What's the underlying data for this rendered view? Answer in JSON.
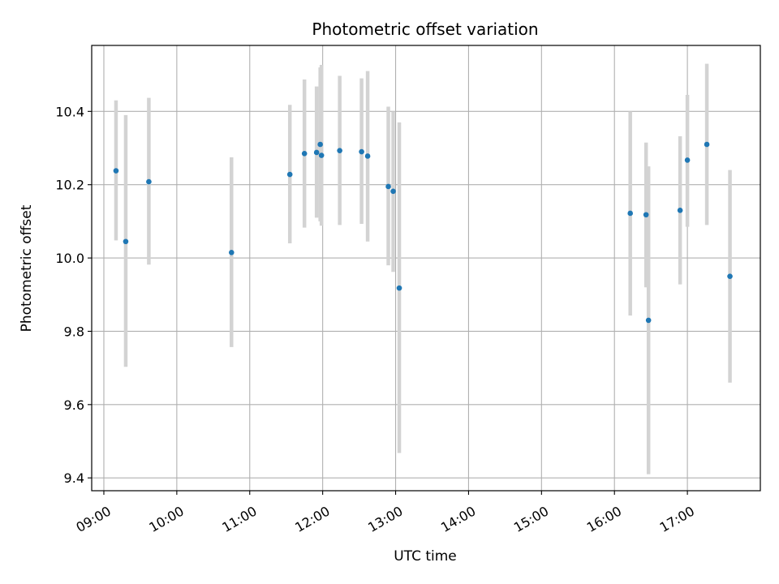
{
  "chart_data": {
    "type": "scatter",
    "title": "Photometric offset variation",
    "xlabel": "UTC time",
    "ylabel": "Photometric offset",
    "xlim": [
      "08:50",
      "18:00"
    ],
    "ylim": [
      9.365,
      10.58
    ],
    "x_ticks": [
      "09:00",
      "10:00",
      "11:00",
      "12:00",
      "13:00",
      "14:00",
      "15:00",
      "16:00",
      "17:00"
    ],
    "y_ticks": [
      9.4,
      9.6,
      9.8,
      10.0,
      10.2,
      10.4
    ],
    "grid": true,
    "colors": {
      "point": "#1f77b4",
      "errorbar": "#d3d3d3",
      "grid": "#b0b0b0",
      "axes": "#000000"
    },
    "points": [
      {
        "x": "09:10",
        "y": 10.238,
        "ylow": 10.048,
        "yhigh": 10.43
      },
      {
        "x": "09:18",
        "y": 10.045,
        "ylow": 9.703,
        "yhigh": 10.39
      },
      {
        "x": "09:37",
        "y": 10.208,
        "ylow": 9.982,
        "yhigh": 10.437
      },
      {
        "x": "10:45",
        "y": 10.015,
        "ylow": 9.757,
        "yhigh": 10.275
      },
      {
        "x": "11:33",
        "y": 10.228,
        "ylow": 10.04,
        "yhigh": 10.418
      },
      {
        "x": "11:45",
        "y": 10.285,
        "ylow": 10.083,
        "yhigh": 10.487
      },
      {
        "x": "11:55",
        "y": 10.288,
        "ylow": 10.11,
        "yhigh": 10.468
      },
      {
        "x": "11:58",
        "y": 10.31,
        "ylow": 10.1,
        "yhigh": 10.52
      },
      {
        "x": "11:59",
        "y": 10.28,
        "ylow": 10.088,
        "yhigh": 10.527
      },
      {
        "x": "12:14",
        "y": 10.293,
        "ylow": 10.09,
        "yhigh": 10.497
      },
      {
        "x": "12:32",
        "y": 10.29,
        "ylow": 10.093,
        "yhigh": 10.49
      },
      {
        "x": "12:37",
        "y": 10.278,
        "ylow": 10.045,
        "yhigh": 10.51
      },
      {
        "x": "12:54",
        "y": 10.195,
        "ylow": 9.98,
        "yhigh": 10.413
      },
      {
        "x": "12:58",
        "y": 10.182,
        "ylow": 9.962,
        "yhigh": 10.4
      },
      {
        "x": "13:03",
        "y": 9.918,
        "ylow": 9.468,
        "yhigh": 10.37
      },
      {
        "x": "16:13",
        "y": 10.122,
        "ylow": 9.843,
        "yhigh": 10.4
      },
      {
        "x": "16:26",
        "y": 10.118,
        "ylow": 9.92,
        "yhigh": 10.315
      },
      {
        "x": "16:28",
        "y": 9.83,
        "ylow": 9.41,
        "yhigh": 10.25
      },
      {
        "x": "16:54",
        "y": 10.13,
        "ylow": 9.928,
        "yhigh": 10.332
      },
      {
        "x": "17:00",
        "y": 10.267,
        "ylow": 10.085,
        "yhigh": 10.445
      },
      {
        "x": "17:16",
        "y": 10.31,
        "ylow": 10.09,
        "yhigh": 10.53
      },
      {
        "x": "17:35",
        "y": 9.95,
        "ylow": 9.66,
        "yhigh": 10.24
      }
    ]
  }
}
